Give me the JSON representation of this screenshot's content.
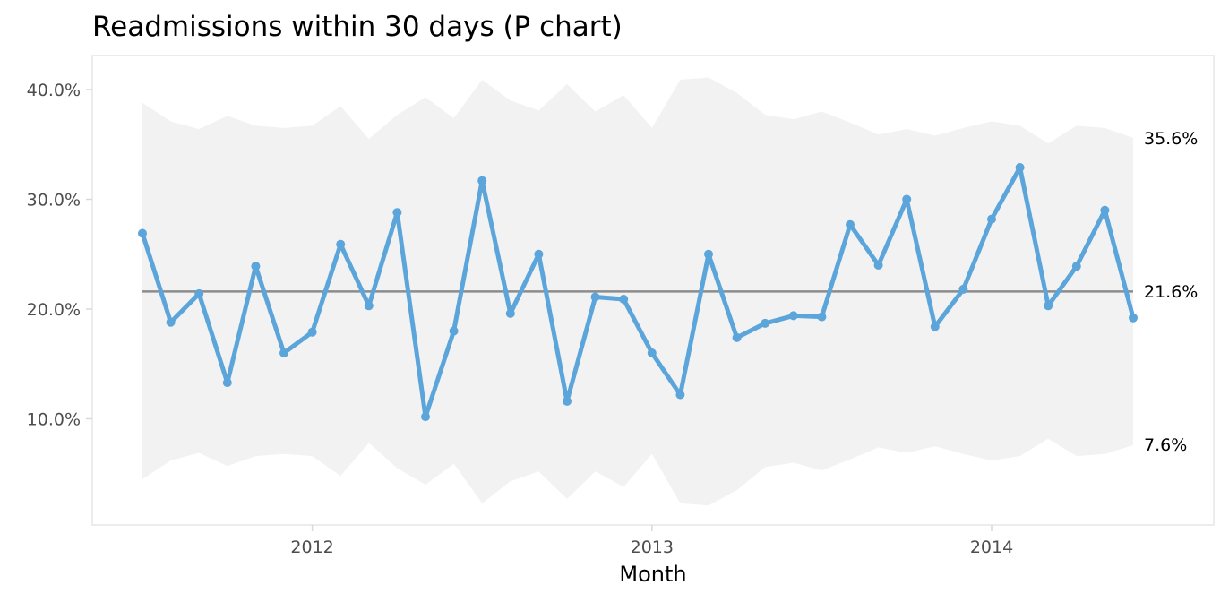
{
  "chart_data": {
    "type": "line",
    "title": "Readmissions within 30 days (P chart)",
    "xlabel": "Month",
    "ylabel": "",
    "x_ticks": [
      "2012",
      "2013",
      "2014"
    ],
    "y_ticks": [
      "10.0%",
      "20.0%",
      "30.0%",
      "40.0%"
    ],
    "ylim": [
      0.0,
      0.43
    ],
    "grid": false,
    "x": [
      "2011-07",
      "2011-08",
      "2011-09",
      "2011-10",
      "2011-11",
      "2011-12",
      "2012-01",
      "2012-02",
      "2012-03",
      "2012-04",
      "2012-05",
      "2012-06",
      "2012-07",
      "2012-08",
      "2012-09",
      "2012-10",
      "2012-11",
      "2012-12",
      "2013-01",
      "2013-02",
      "2013-03",
      "2013-04",
      "2013-05",
      "2013-06",
      "2013-07",
      "2013-08",
      "2013-09",
      "2013-10",
      "2013-11",
      "2013-12",
      "2014-01",
      "2014-02",
      "2014-03",
      "2014-04",
      "2014-05",
      "2014-06"
    ],
    "series": [
      {
        "values": [
          0.269,
          0.188,
          0.214,
          0.133,
          0.239,
          0.16,
          0.179,
          0.259,
          0.203,
          0.288,
          0.102,
          0.18,
          0.317,
          0.196,
          0.25,
          0.116,
          0.211,
          0.209,
          0.16,
          0.122,
          0.25,
          0.174,
          0.187,
          0.194,
          0.193,
          0.277,
          0.24,
          0.3,
          0.184,
          0.218,
          0.282,
          0.329,
          0.203,
          0.239,
          0.29,
          0.192
        ],
        "color": "#5ba5da"
      }
    ],
    "center_line": 0.216,
    "center_line_color": "#8c8c8c",
    "limits": {
      "upper": [
        0.388,
        0.371,
        0.364,
        0.376,
        0.367,
        0.365,
        0.367,
        0.385,
        0.355,
        0.377,
        0.393,
        0.374,
        0.409,
        0.39,
        0.381,
        0.405,
        0.38,
        0.395,
        0.365,
        0.409,
        0.411,
        0.397,
        0.377,
        0.373,
        0.38,
        0.37,
        0.359,
        0.364,
        0.358,
        0.365,
        0.371,
        0.367,
        0.351,
        0.367,
        0.365,
        0.356
      ],
      "lower": [
        0.045,
        0.062,
        0.069,
        0.057,
        0.066,
        0.068,
        0.066,
        0.048,
        0.078,
        0.055,
        0.04,
        0.059,
        0.023,
        0.043,
        0.052,
        0.027,
        0.052,
        0.038,
        0.068,
        0.023,
        0.021,
        0.035,
        0.056,
        0.06,
        0.053,
        0.063,
        0.074,
        0.069,
        0.075,
        0.068,
        0.062,
        0.066,
        0.082,
        0.066,
        0.068,
        0.076
      ],
      "band_color": "#f2f2f2"
    },
    "limit_labels": {
      "upper": "35.6%",
      "center": "21.6%",
      "lower": "7.6%"
    }
  }
}
